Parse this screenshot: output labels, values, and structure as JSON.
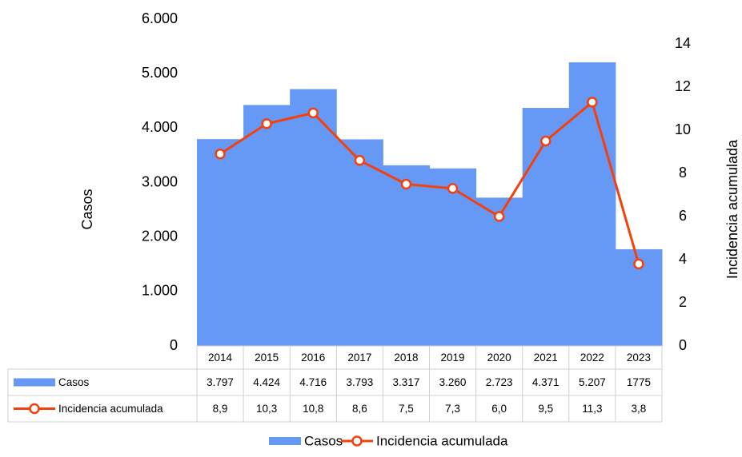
{
  "chart_data": {
    "type": "bar",
    "categories": [
      "2014",
      "2015",
      "2016",
      "2017",
      "2018",
      "2019",
      "2020",
      "2021",
      "2022",
      "2023"
    ],
    "series": [
      {
        "name": "Casos",
        "type": "bar",
        "color": "#6699f5",
        "values": [
          3797,
          4424,
          4716,
          3793,
          3317,
          3260,
          2723,
          4371,
          5207,
          1775
        ],
        "value_labels": [
          "3.797",
          "4.424",
          "4.716",
          "3.793",
          "3.317",
          "3.260",
          "2.723",
          "4.371",
          "5.207",
          "1775"
        ]
      },
      {
        "name": "Incidencia acumulada",
        "type": "line",
        "axis": "y2",
        "color": "#f4400c",
        "values": [
          8.9,
          10.3,
          10.8,
          8.6,
          7.5,
          7.3,
          6.0,
          9.5,
          11.3,
          3.8
        ],
        "value_labels": [
          "8,9",
          "10,3",
          "10,8",
          "8,6",
          "7,5",
          "7,3",
          "6,0",
          "9,5",
          "11,3",
          "3,8"
        ]
      }
    ],
    "ylabel": "Casos",
    "y2label": "Incidencia acumulada",
    "ylim": [
      0,
      6000
    ],
    "yticks": [
      0,
      {
        "value": 1000,
        "label": "1.000"
      },
      {
        "value": 2000,
        "label": "2.000"
      },
      {
        "value": 3000,
        "label": "3.000"
      },
      {
        "value": 4000,
        "label": "4.000"
      },
      {
        "value": 5000,
        "label": "5.000"
      },
      {
        "value": 6000,
        "label": "6.000"
      }
    ],
    "y2lim": [
      0,
      14
    ],
    "y2ticks": [
      0,
      2,
      4,
      6,
      8,
      10,
      12,
      14
    ],
    "legend": "bottom"
  }
}
